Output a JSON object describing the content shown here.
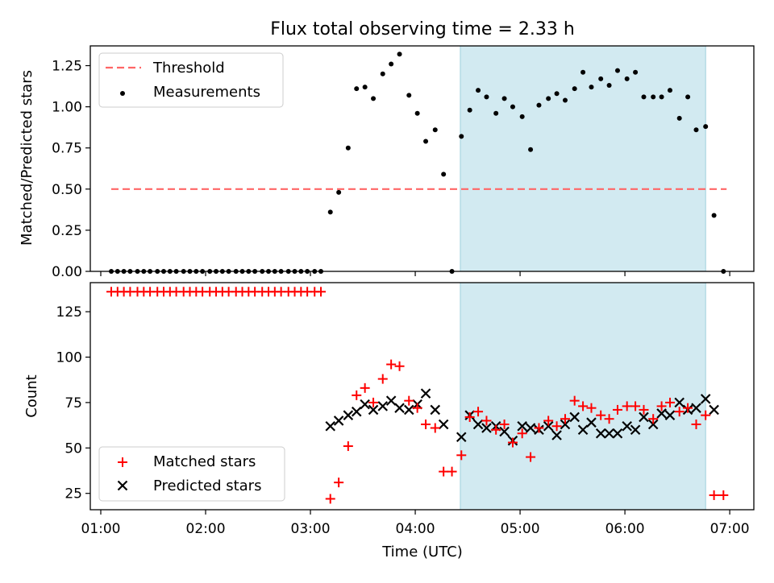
{
  "chart_data": {
    "type": "scatter",
    "title": "Flux total observing time = 2.33 h",
    "xlabel": "Time (UTC)",
    "xticks": [
      "01:00",
      "02:00",
      "03:00",
      "04:00",
      "05:00",
      "06:00",
      "07:00"
    ],
    "xlim_hours": [
      0.9,
      7.23
    ],
    "shaded_interval_hours": [
      4.43,
      6.77
    ],
    "colors": {
      "shade": "#add8e6",
      "threshold": "#ff6666",
      "matched": "#ff0000",
      "predicted": "#000000",
      "measurement": "#000000"
    },
    "panels": [
      {
        "ylabel": "Matched/Predicted stars",
        "ylim": [
          0,
          1.37
        ],
        "yticks": [
          "0.00",
          "0.25",
          "0.50",
          "0.75",
          "1.00",
          "1.25"
        ],
        "legend_position": "upper left",
        "threshold": {
          "name": "Threshold",
          "value": 0.5,
          "x_range": [
            1.1,
            6.97
          ]
        },
        "measurements": {
          "name": "Measurements",
          "x": [
            1.1,
            1.16,
            1.22,
            1.28,
            1.35,
            1.41,
            1.47,
            1.54,
            1.6,
            1.66,
            1.72,
            1.79,
            1.85,
            1.91,
            1.97,
            2.04,
            2.1,
            2.16,
            2.22,
            2.29,
            2.35,
            2.41,
            2.47,
            2.54,
            2.6,
            2.66,
            2.72,
            2.79,
            2.85,
            2.91,
            2.97,
            3.04,
            3.1,
            3.19,
            3.27,
            3.36,
            3.44,
            3.52,
            3.6,
            3.69,
            3.77,
            3.85,
            3.94,
            4.02,
            4.1,
            4.19,
            4.27,
            4.35,
            4.44,
            4.52,
            4.6,
            4.68,
            4.77,
            4.85,
            4.93,
            5.02,
            5.1,
            5.18,
            5.27,
            5.35,
            5.43,
            5.52,
            5.6,
            5.68,
            5.77,
            5.85,
            5.93,
            6.02,
            6.1,
            6.18,
            6.27,
            6.35,
            6.43,
            6.52,
            6.6,
            6.68,
            6.77,
            6.85,
            6.94
          ],
          "y": [
            0,
            0,
            0,
            0,
            0,
            0,
            0,
            0,
            0,
            0,
            0,
            0,
            0,
            0,
            0,
            0,
            0,
            0,
            0,
            0,
            0,
            0,
            0,
            0,
            0,
            0,
            0,
            0,
            0,
            0,
            0,
            0,
            0,
            0.36,
            0.48,
            0.75,
            1.11,
            1.12,
            1.05,
            1.2,
            1.26,
            1.32,
            1.07,
            0.96,
            0.79,
            0.86,
            0.59,
            0.0,
            0.82,
            0.98,
            1.1,
            1.06,
            0.96,
            1.05,
            1.0,
            0.94,
            0.74,
            1.01,
            1.05,
            1.08,
            1.04,
            1.11,
            1.21,
            1.12,
            1.17,
            1.13,
            1.22,
            1.17,
            1.21,
            1.06,
            1.06,
            1.06,
            1.1,
            0.93,
            1.06,
            0.86,
            0.88,
            0.34,
            0.0
          ]
        }
      },
      {
        "ylabel": "Count",
        "ylim": [
          16,
          141
        ],
        "yticks": [
          "25",
          "50",
          "75",
          "100",
          "125"
        ],
        "legend_position": "lower left",
        "matched": {
          "name": "Matched stars",
          "x": [
            1.1,
            1.16,
            1.22,
            1.28,
            1.35,
            1.41,
            1.47,
            1.54,
            1.6,
            1.66,
            1.72,
            1.79,
            1.85,
            1.91,
            1.97,
            2.04,
            2.1,
            2.16,
            2.22,
            2.29,
            2.35,
            2.41,
            2.47,
            2.54,
            2.6,
            2.66,
            2.72,
            2.79,
            2.85,
            2.91,
            2.97,
            3.04,
            3.1,
            3.19,
            3.27,
            3.36,
            3.44,
            3.52,
            3.6,
            3.69,
            3.77,
            3.85,
            3.94,
            4.02,
            4.1,
            4.19,
            4.27,
            4.35,
            4.44,
            4.52,
            4.6,
            4.68,
            4.77,
            4.85,
            4.93,
            5.02,
            5.1,
            5.18,
            5.27,
            5.35,
            5.43,
            5.52,
            5.6,
            5.68,
            5.77,
            5.85,
            5.93,
            6.02,
            6.1,
            6.18,
            6.27,
            6.35,
            6.43,
            6.52,
            6.6,
            6.68,
            6.77,
            6.85,
            6.94
          ],
          "y": [
            136,
            136,
            136,
            136,
            136,
            136,
            136,
            136,
            136,
            136,
            136,
            136,
            136,
            136,
            136,
            136,
            136,
            136,
            136,
            136,
            136,
            136,
            136,
            136,
            136,
            136,
            136,
            136,
            136,
            136,
            136,
            136,
            136,
            22,
            31,
            51,
            79,
            83,
            75,
            88,
            96,
            95,
            76,
            72,
            63,
            61,
            37,
            37,
            46,
            67,
            70,
            65,
            60,
            63,
            53,
            58,
            45,
            61,
            65,
            62,
            66,
            76,
            73,
            72,
            68,
            66,
            71,
            73,
            73,
            71,
            66,
            73,
            75,
            70,
            72,
            63,
            68,
            24,
            24
          ]
        },
        "predicted": {
          "name": "Predicted stars",
          "x": [
            3.19,
            3.27,
            3.36,
            3.44,
            3.52,
            3.6,
            3.69,
            3.77,
            3.85,
            3.94,
            4.02,
            4.1,
            4.19,
            4.27,
            4.44,
            4.52,
            4.6,
            4.68,
            4.77,
            4.85,
            4.93,
            5.02,
            5.1,
            5.18,
            5.27,
            5.35,
            5.43,
            5.52,
            5.6,
            5.68,
            5.77,
            5.85,
            5.93,
            6.02,
            6.1,
            6.18,
            6.27,
            6.35,
            6.43,
            6.52,
            6.6,
            6.68,
            6.77,
            6.85
          ],
          "y": [
            62,
            65,
            68,
            70,
            74,
            71,
            73,
            76,
            72,
            71,
            74,
            80,
            71,
            63,
            56,
            68,
            63,
            61,
            62,
            59,
            54,
            62,
            61,
            60,
            62,
            57,
            63,
            67,
            60,
            64,
            58,
            58,
            58,
            62,
            60,
            67,
            63,
            69,
            68,
            75,
            71,
            72,
            77,
            71
          ]
        }
      }
    ]
  }
}
